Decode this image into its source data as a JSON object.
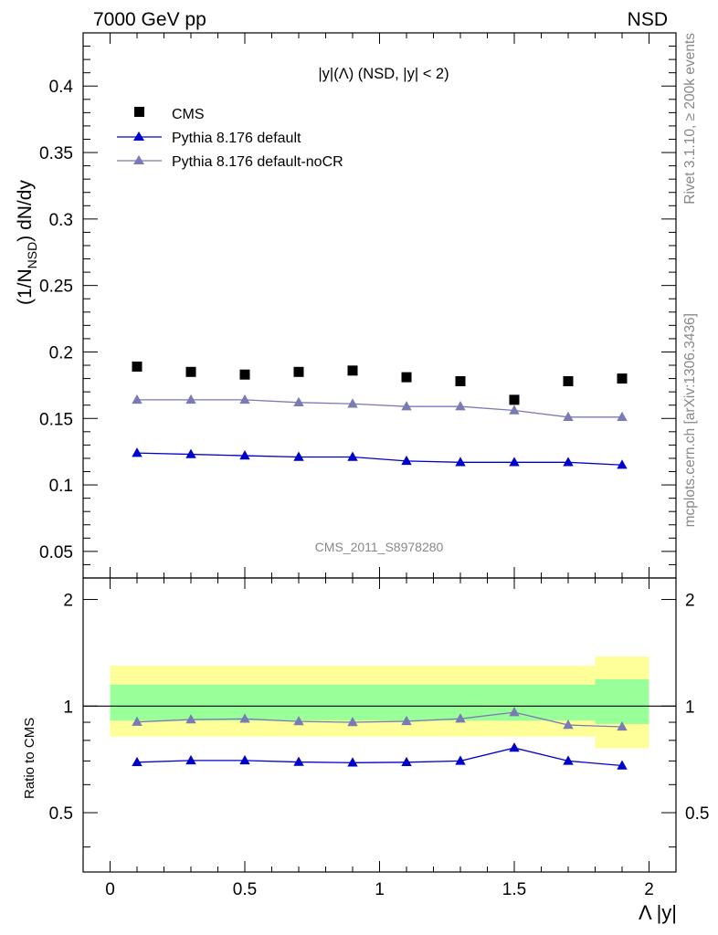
{
  "header": {
    "left": "7000 GeV pp",
    "right": "NSD"
  },
  "side_labels": {
    "rivet": "Rivet 3.1.10, ≥ 200k events",
    "mcplots": "mcplots.cern.ch [arXiv:1306.3436]"
  },
  "watermark": "CMS_2011_S8978280",
  "colors": {
    "cms": "#000000",
    "pythia_default": "#0000cc",
    "pythia_nocr": "#7a7ab5",
    "band_inner": "#99ff99",
    "band_outer": "#ffff99"
  },
  "chart_data": [
    {
      "type": "scatter",
      "panel": "main",
      "title": "|y|(Λ) (NSD, |y| < 2)",
      "ylabel": "(1/N_NSD) dN/dy",
      "ylabel_parts": {
        "prefix": "(1/N",
        "sub": "NSD",
        "suffix": ") dN/dy"
      },
      "xlim": [
        -0.1,
        2.1
      ],
      "ylim": [
        0.03,
        0.44
      ],
      "yticks": [
        0.05,
        0.1,
        0.15,
        0.2,
        0.25,
        0.3,
        0.35,
        0.4
      ],
      "ytick_labels": [
        "0.05",
        "0.1",
        "0.15",
        "0.2",
        "0.25",
        "0.3",
        "0.35",
        "0.4"
      ],
      "x": [
        0.1,
        0.3,
        0.5,
        0.7,
        0.9,
        1.1,
        1.3,
        1.5,
        1.7,
        1.9
      ],
      "series": [
        {
          "name": "CMS",
          "marker": "square",
          "values": [
            0.189,
            0.185,
            0.183,
            0.185,
            0.186,
            0.181,
            0.178,
            0.164,
            0.178,
            0.18
          ]
        },
        {
          "name": "Pythia 8.176 default",
          "marker": "triangle",
          "values": [
            0.124,
            0.123,
            0.122,
            0.121,
            0.121,
            0.118,
            0.117,
            0.117,
            0.117,
            0.115
          ]
        },
        {
          "name": "Pythia 8.176 default-noCR",
          "marker": "triangle",
          "values": [
            0.164,
            0.164,
            0.164,
            0.162,
            0.161,
            0.159,
            0.159,
            0.156,
            0.151,
            0.151
          ]
        }
      ],
      "legend": [
        "CMS",
        "Pythia 8.176 default",
        "Pythia 8.176 default-noCR"
      ],
      "legend_position": "top-left"
    },
    {
      "type": "line",
      "panel": "ratio",
      "ylabel": "Ratio to CMS",
      "xlabel": "Λ |y|",
      "xlim": [
        -0.1,
        2.1
      ],
      "ylim": [
        0.34,
        2.3
      ],
      "yticks": [
        0.5,
        1,
        2
      ],
      "ytick_labels": [
        "0.5",
        "1",
        "2"
      ],
      "xticks": [
        0,
        0.5,
        1,
        1.5,
        2
      ],
      "xtick_labels": [
        "0",
        "0.5",
        "1",
        "1.5",
        "2"
      ],
      "x": [
        0.1,
        0.3,
        0.5,
        0.7,
        0.9,
        1.1,
        1.3,
        1.5,
        1.7,
        1.9
      ],
      "bands": {
        "edges": [
          0.0,
          1.8,
          2.0
        ],
        "outer": [
          [
            0.82,
            1.3
          ],
          [
            0.76,
            1.38
          ]
        ],
        "inner": [
          [
            0.91,
            1.15
          ],
          [
            0.89,
            1.19
          ]
        ]
      },
      "series": [
        {
          "name": "Pythia 8.176 default",
          "values": [
            0.694,
            0.702,
            0.702,
            0.695,
            0.692,
            0.694,
            0.7,
            0.762,
            0.7,
            0.679
          ]
        },
        {
          "name": "Pythia 8.176 default-noCR",
          "values": [
            0.902,
            0.916,
            0.92,
            0.905,
            0.9,
            0.906,
            0.921,
            0.96,
            0.884,
            0.874
          ]
        }
      ]
    }
  ]
}
